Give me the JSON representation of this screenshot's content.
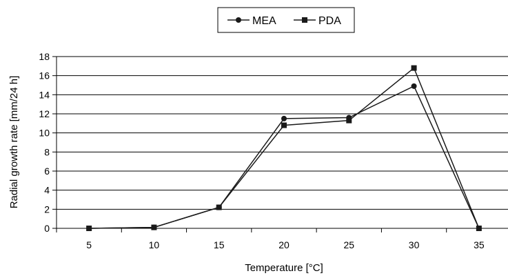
{
  "chart_data": {
    "type": "line",
    "x": [
      5,
      10,
      15,
      20,
      25,
      30,
      35
    ],
    "xlabel": "Temperature [°C]",
    "ylabel": "Radial growth rate  [mm/24 h]",
    "ylim": [
      0,
      18
    ],
    "yticks": [
      0,
      2,
      4,
      6,
      8,
      10,
      12,
      14,
      16,
      18
    ],
    "grid": "horizontal",
    "legend_position": "top-center",
    "series": [
      {
        "name": "MEA",
        "marker": "circle",
        "color": "#1a1a1a",
        "values": [
          0.0,
          0.1,
          2.2,
          11.5,
          11.6,
          14.9,
          0.0
        ]
      },
      {
        "name": "PDA",
        "marker": "square",
        "color": "#1a1a1a",
        "values": [
          0.0,
          0.1,
          2.2,
          10.8,
          11.3,
          16.8,
          0.0
        ]
      }
    ]
  }
}
